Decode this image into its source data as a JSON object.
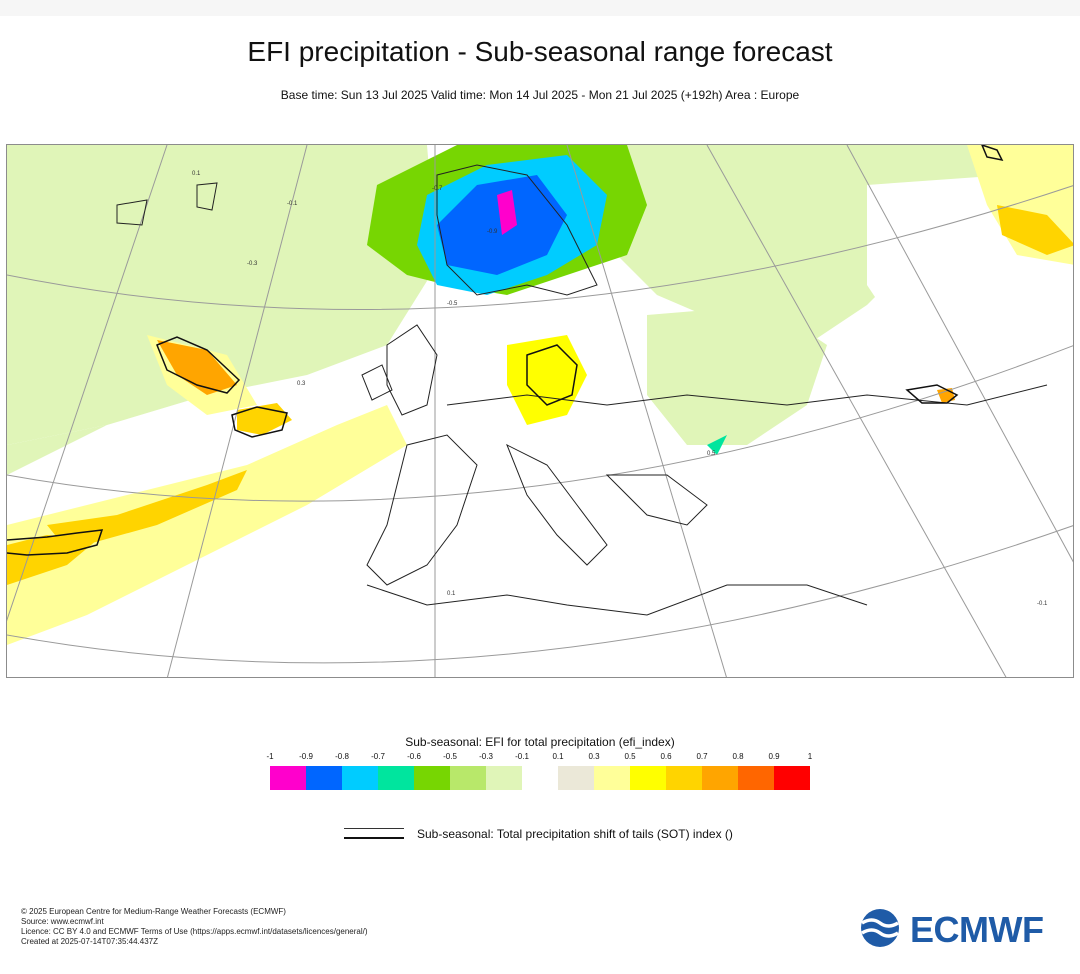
{
  "header": {
    "title": "EFI precipitation - Sub-seasonal range forecast",
    "subtitle": "Base time: Sun 13 Jul 2025 Valid time: Mon 14 Jul 2025 - Mon 21 Jul 2025 (+192h) Area : Europe"
  },
  "legend": {
    "title": "Sub-seasonal: EFI for total precipitation (efi_index)",
    "ticks": [
      "-1",
      "-0.9",
      "-0.8",
      "-0.7",
      "-0.6",
      "-0.5",
      "-0.3",
      "-0.1",
      "0.1",
      "0.3",
      "0.5",
      "0.6",
      "0.7",
      "0.8",
      "0.9",
      "1"
    ],
    "colors": [
      "#ff00cc",
      "#0066ff",
      "#00ccff",
      "#00e59e",
      "#77d602",
      "#b8e86a",
      "#e0f5b8",
      "#ffffff",
      "#ebe8d8",
      "#ffff99",
      "#ffff00",
      "#ffd400",
      "#ffa500",
      "#ff6600",
      "#ff0000"
    ],
    "sot_label": "Sub-seasonal: Total precipitation shift of tails (SOT) index ()"
  },
  "footer": {
    "lines": [
      "© 2025 European Centre for Medium-Range Weather Forecasts (ECMWF)",
      "Source: www.ecmwf.int",
      "Licence: CC BY 4.0 and ECMWF Terms of Use (https://apps.ecmwf.int/datasets/licences/general/)",
      "Created at 2025-07-14T07:35:44.437Z"
    ]
  },
  "logo": {
    "text": "ECMWF"
  },
  "map_labels": [
    "0.1",
    "-0.1",
    "0.3",
    "-0.3",
    "-0.5",
    "-0.7",
    "0.5",
    "-0.9"
  ]
}
